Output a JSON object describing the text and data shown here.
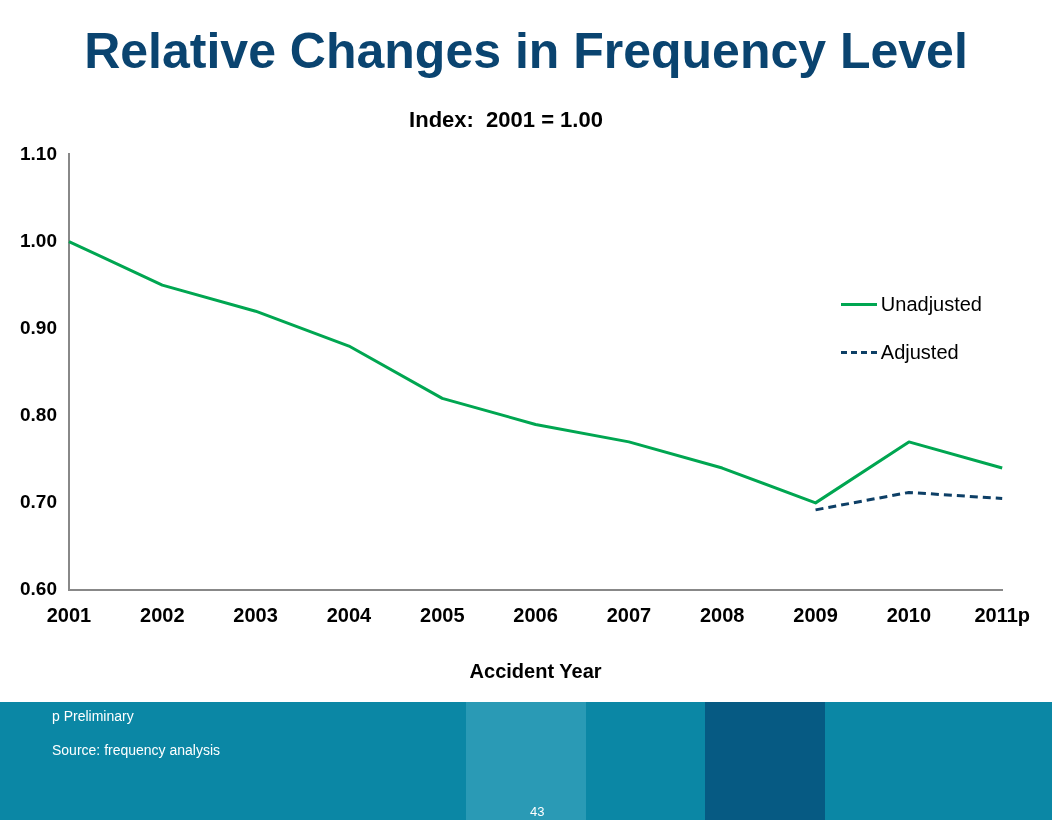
{
  "chart_data": {
    "type": "line",
    "title": "Relative Changes in Frequency Level",
    "subtitle": "Index:  2001 = 1.00",
    "xlabel": "Accident Year",
    "categories": [
      "2001",
      "2002",
      "2003",
      "2004",
      "2005",
      "2006",
      "2007",
      "2008",
      "2009",
      "2010",
      "2011p"
    ],
    "series": [
      {
        "name": "Unadjusted",
        "color": "#00a651",
        "line_style": "solid",
        "values": [
          1.0,
          0.95,
          0.92,
          0.88,
          0.82,
          0.79,
          0.77,
          0.74,
          0.7,
          0.77,
          0.74
        ]
      },
      {
        "name": "Adjusted",
        "color": "#0d3f66",
        "line_style": "dashed",
        "values": [
          null,
          null,
          null,
          null,
          null,
          null,
          null,
          null,
          0.692,
          0.712,
          0.705
        ]
      }
    ],
    "ylim": [
      0.6,
      1.1
    ],
    "yticks": [
      {
        "value": 0.6,
        "label": "0.60"
      },
      {
        "value": 0.7,
        "label": "0.70"
      },
      {
        "value": 0.8,
        "label": "0.80"
      },
      {
        "value": 0.9,
        "label": "0.90"
      },
      {
        "value": 1.0,
        "label": "1.00"
      },
      {
        "value": 1.1,
        "label": "1.10"
      }
    ],
    "grid": false,
    "legend": "top right",
    "marker": "none",
    "annotations": [
      "p Preliminary",
      "Source:  frequency analysis",
      "43"
    ]
  }
}
